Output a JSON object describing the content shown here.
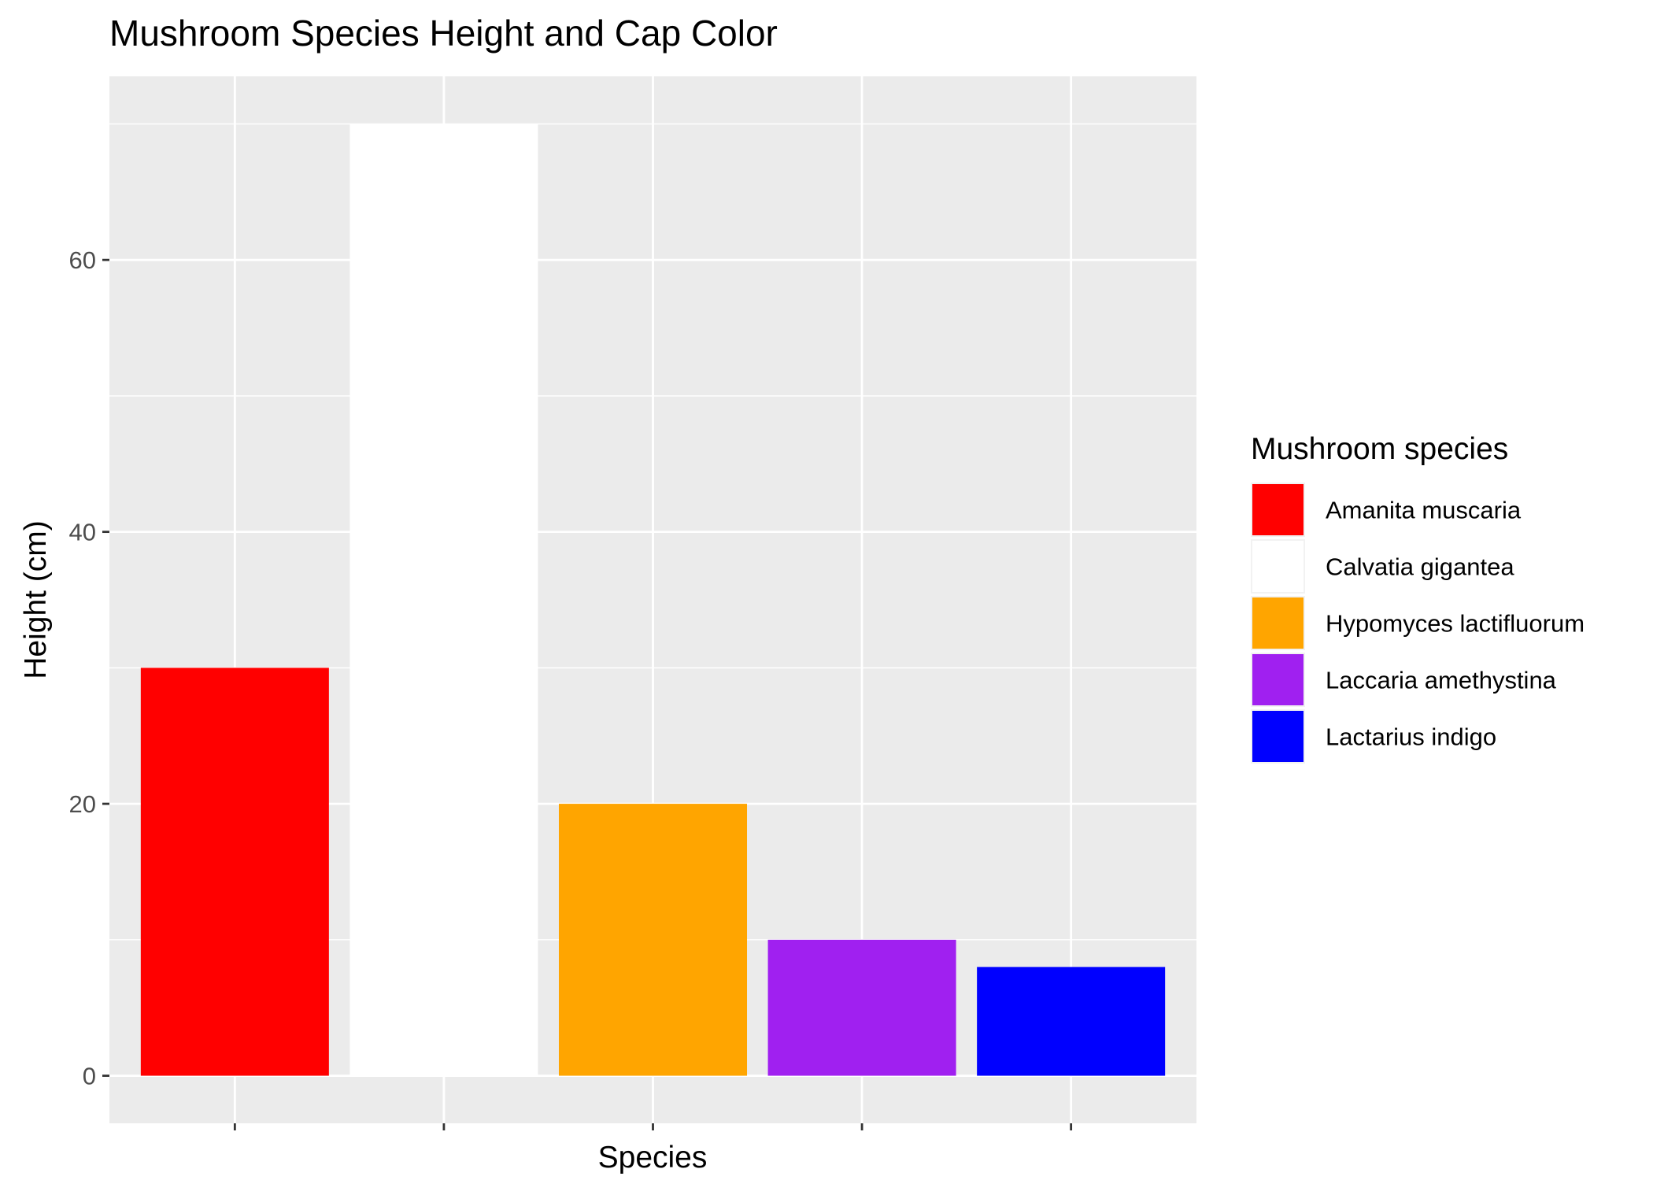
{
  "chart_data": {
    "type": "bar",
    "title": "Mushroom Species Height and Cap Color",
    "xlabel": "Species",
    "ylabel": "Height (cm)",
    "categories": [
      "Amanita muscaria",
      "Calvatia gigantea",
      "Hypomyces lactifluorum",
      "Laccaria amethystina",
      "Lactarius indigo"
    ],
    "values": [
      30,
      70,
      20,
      10,
      8
    ],
    "colors": [
      "#ff0000",
      "#ffffff",
      "#ffa500",
      "#a020f0",
      "#0000ff"
    ],
    "x_tick_labels_shown": false,
    "ylim": [
      -3.5,
      73.5
    ],
    "yticks": [
      0,
      20,
      40,
      60
    ],
    "grid": true,
    "panel_background": "#ebebeb",
    "grid_color": "#ffffff",
    "legend": {
      "title": "Mushroom species",
      "position": "right",
      "entries": [
        "Amanita muscaria",
        "Calvatia gigantea",
        "Hypomyces lactifluorum",
        "Laccaria amethystina",
        "Lactarius indigo"
      ]
    }
  }
}
